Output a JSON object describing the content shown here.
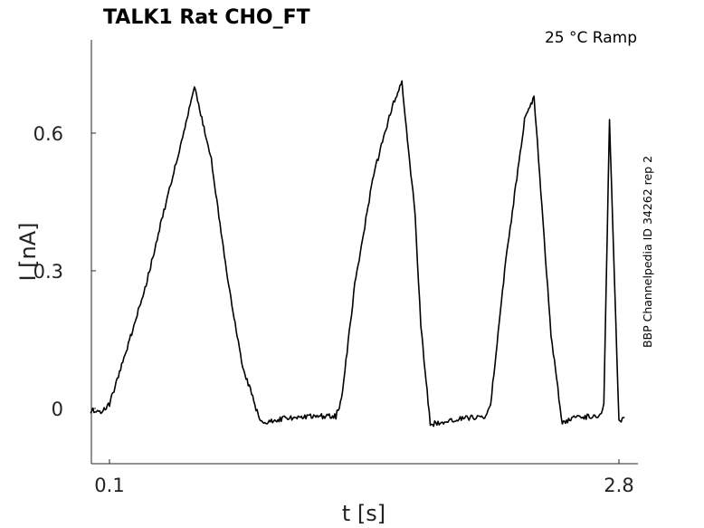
{
  "chart_data": {
    "type": "line",
    "title": "TALK1  Rat  CHO_FT",
    "subtitle": "25 °C  Ramp",
    "side_note": "BBP Channelpedia ID 34262 rep 2",
    "xlabel": "t [s]",
    "ylabel": "I [nA]",
    "xlim": [
      0.1,
      2.8
    ],
    "ylim": [
      -0.12,
      0.8
    ],
    "x_ticks": [
      0.1,
      2.8
    ],
    "x_tick_labels": [
      "0.1",
      "2.8"
    ],
    "y_ticks": [
      0,
      0.3,
      0.6
    ],
    "y_tick_labels": [
      "0",
      "0.3",
      "0.6"
    ],
    "grid": false,
    "series": [
      {
        "color": "#000000",
        "x": [
          0.0,
          0.06,
          0.1,
          0.2,
          0.3,
          0.4,
          0.5,
          0.55,
          0.64,
          0.72,
          0.8,
          0.9,
          0.97,
          1.05,
          1.1,
          1.2,
          1.3,
          1.33,
          1.4,
          1.5,
          1.6,
          1.65,
          1.72,
          1.75,
          1.8,
          1.9,
          2.0,
          2.05,
          2.1,
          2.12,
          2.2,
          2.3,
          2.35,
          2.38,
          2.44,
          2.5,
          2.55,
          2.65,
          2.7,
          2.72,
          2.75,
          2.8,
          2.83
        ],
        "y": [
          -0.005,
          -0.005,
          0.01,
          0.14,
          0.28,
          0.45,
          0.61,
          0.7,
          0.54,
          0.3,
          0.1,
          -0.03,
          -0.025,
          -0.02,
          -0.02,
          -0.017,
          -0.017,
          0.02,
          0.27,
          0.51,
          0.66,
          0.71,
          0.42,
          0.18,
          -0.035,
          -0.025,
          -0.02,
          -0.02,
          -0.015,
          0.01,
          0.32,
          0.63,
          0.68,
          0.51,
          0.16,
          -0.035,
          -0.02,
          -0.018,
          -0.015,
          0.01,
          0.63,
          -0.03,
          -0.02
        ]
      }
    ]
  }
}
